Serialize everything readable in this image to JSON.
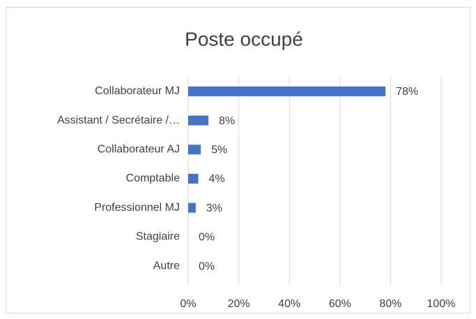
{
  "chart_data": {
    "type": "bar",
    "orientation": "horizontal",
    "title": "Poste occupé",
    "categories": [
      "Collaborateur MJ",
      "Assistant / Secrétaire /…",
      "Collaborateur AJ",
      "Comptable",
      "Professionnel MJ",
      "Stagiaire",
      "Autre"
    ],
    "values": [
      78,
      8,
      5,
      4,
      3,
      0,
      0
    ],
    "value_labels": [
      "78%",
      "8%",
      "5%",
      "4%",
      "3%",
      "0%",
      "0%"
    ],
    "color": "#4472c4",
    "xlim": [
      0,
      100
    ],
    "xticks": [
      {
        "value": 0,
        "label": "0%"
      },
      {
        "value": 20,
        "label": "20%"
      },
      {
        "value": 40,
        "label": "40%"
      },
      {
        "value": 60,
        "label": "60%"
      },
      {
        "value": 80,
        "label": "80%"
      },
      {
        "value": 100,
        "label": "100%"
      }
    ],
    "grid": true
  }
}
